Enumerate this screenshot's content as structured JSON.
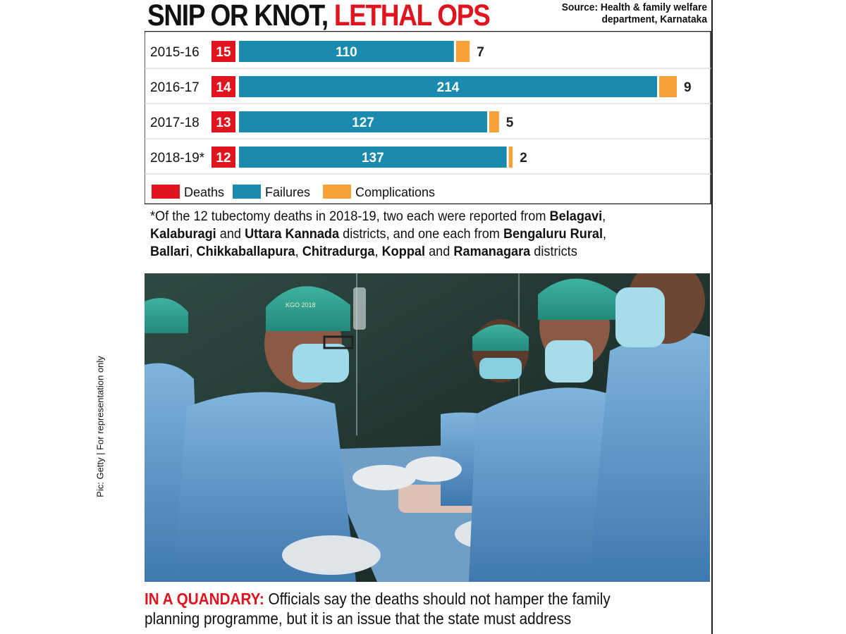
{
  "header": {
    "title_part1": "SNIP OR KNOT, ",
    "title_part2": "LETHAL OPS",
    "source_line1": "Source: Health & family welfare",
    "source_line2": "department, Karnataka"
  },
  "chart_data": {
    "type": "bar",
    "orientation": "horizontal",
    "categories": [
      "2015-16",
      "2016-17",
      "2017-18",
      "2018-19*"
    ],
    "series": [
      {
        "name": "Deaths",
        "values": [
          15,
          14,
          13,
          12
        ]
      },
      {
        "name": "Failures",
        "values": [
          110,
          214,
          127,
          137
        ]
      },
      {
        "name": "Complications",
        "values": [
          7,
          9,
          5,
          2
        ]
      }
    ],
    "colors": {
      "Deaths": "#e0141e",
      "Failures": "#1a8aae",
      "Complications": "#f7a239"
    },
    "legend_placement": "bottom-left",
    "stacked": true
  },
  "note": {
    "p1": "*Of the 12 tubectomy deaths in 2018-19, two each were reported from ",
    "d1": "Belagavi",
    "p2": ",",
    "d2": "Kalaburagi",
    "p3": " and ",
    "d3": "Uttara Kannada",
    "p4": " districts, and one each from ",
    "d4": "Bengaluru Rural",
    "p5": ",",
    "d5": "Ballari",
    "p6": ", ",
    "d6": "Chikkaballapura",
    "p7": ", ",
    "d7": "Chitradurga",
    "p8": ", ",
    "d8": "Koppal",
    "p9": " and ",
    "d9": "Ramanagara",
    "p10": " districts"
  },
  "photo": {
    "credit": "Pic: Getty | For representation only",
    "cap_text": "KGO 2018"
  },
  "caption": {
    "lead": "IN A QUANDARY:",
    "line1": " Officials say the deaths should not hamper the family",
    "line2": "planning programme, but it is an issue that the state must address"
  }
}
